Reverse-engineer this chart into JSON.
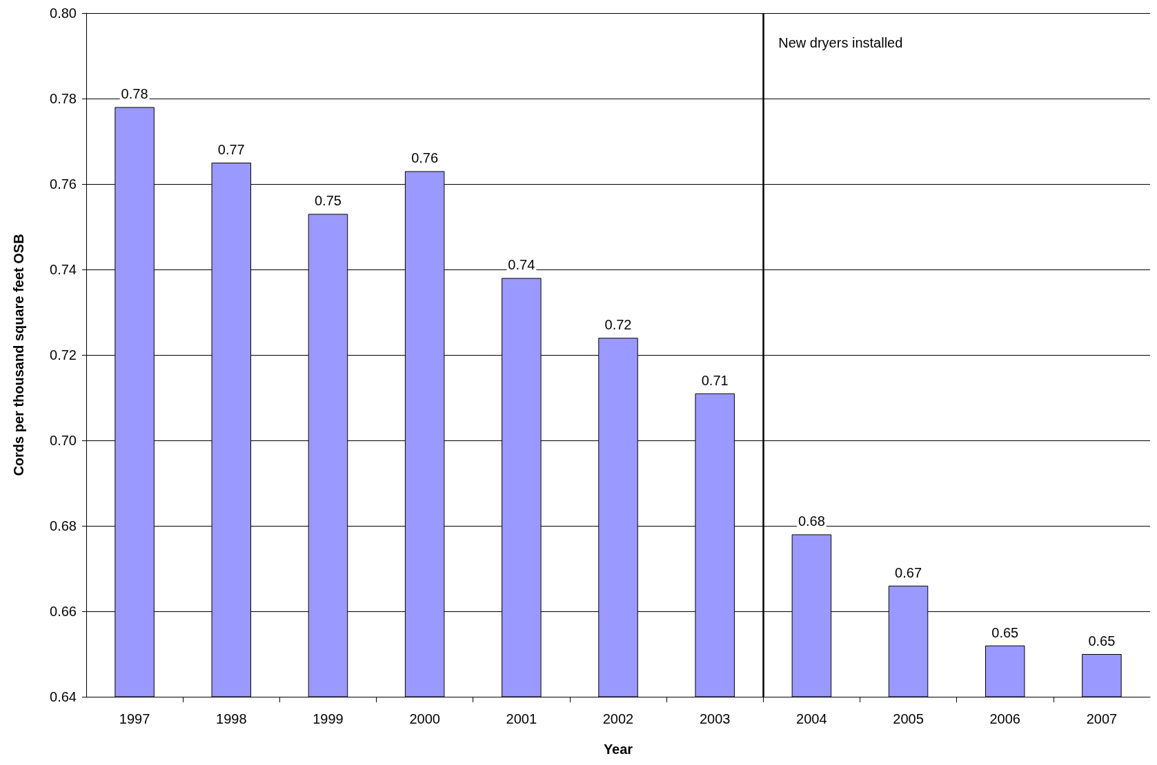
{
  "chart_data": {
    "type": "bar",
    "xlabel": "Year",
    "ylabel": "Cords per thousand square feet OSB",
    "x": [
      1997,
      1998,
      1999,
      2000,
      2001,
      2002,
      2003,
      2004,
      2005,
      2006,
      2007
    ],
    "values": [
      0.778,
      0.765,
      0.753,
      0.763,
      0.738,
      0.724,
      0.711,
      0.678,
      0.666,
      0.652,
      0.65
    ],
    "value_labels": [
      "0.78",
      "0.77",
      "0.75",
      "0.76",
      "0.74",
      "0.72",
      "0.71",
      "0.68",
      "0.67",
      "0.65",
      "0.65"
    ],
    "color": "#9999ff",
    "xlim": [
      1996.5,
      2007.5
    ],
    "xticks": [
      1997,
      1998,
      1999,
      2000,
      2001,
      2002,
      2003,
      2004,
      2005,
      2006,
      2007
    ],
    "ylim": [
      0.64,
      0.8
    ],
    "yticks": [
      {
        "value": 0.64,
        "label": "0.64"
      },
      {
        "value": 0.66,
        "label": "0.66"
      },
      {
        "value": 0.68,
        "label": "0.68"
      },
      {
        "value": 0.7,
        "label": "0.70"
      },
      {
        "value": 0.72,
        "label": "0.72"
      },
      {
        "value": 0.74,
        "label": "0.74"
      },
      {
        "value": 0.76,
        "label": "0.76"
      },
      {
        "value": 0.78,
        "label": "0.78"
      },
      {
        "value": 0.8,
        "label": "0.80"
      }
    ],
    "ref_lines": [
      {
        "axis": "x",
        "value": 2003.5,
        "color": "#000000",
        "label": "New dryers installed"
      }
    ],
    "grid": "y"
  }
}
